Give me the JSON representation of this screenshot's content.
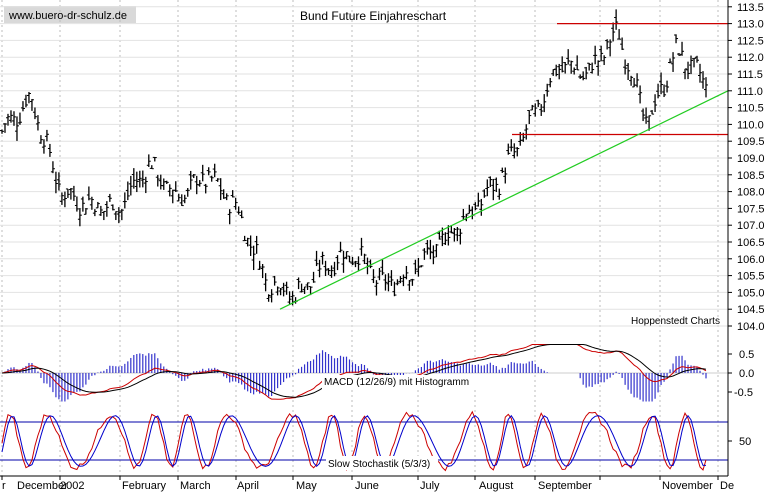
{
  "chart_data": {
    "type": "candlestick",
    "watermark": "www.buero-dr-schulz.de",
    "title": "Bund Future Einjahreschart",
    "source": "Hoppenstedt Charts",
    "x_labels": [
      "r",
      "December",
      "2002",
      "February",
      "March",
      "April",
      "May",
      "June",
      "July",
      "August",
      "September",
      "November",
      "De"
    ],
    "price_panel": {
      "ylim": [
        104.0,
        113.7
      ],
      "yticks": [
        "113.5",
        "113.0",
        "112.5",
        "112.0",
        "111.5",
        "111.0",
        "110.5",
        "110.0",
        "109.5",
        "109.0",
        "108.5",
        "108.0",
        "107.5",
        "107.0",
        "106.5",
        "106.0",
        "105.5",
        "105.0",
        "104.5",
        "104.0"
      ],
      "ytick_values": [
        113.5,
        113.0,
        112.5,
        112.0,
        111.5,
        111.0,
        110.5,
        110.0,
        109.5,
        109.0,
        108.5,
        108.0,
        107.5,
        107.0,
        106.5,
        106.0,
        105.5,
        105.0,
        104.5,
        104.0
      ],
      "support_level": 109.7,
      "resistance_level": 113.0,
      "trendline": {
        "start": 104.5,
        "end": 111.0
      },
      "key_points": [
        {
          "label": "r",
          "close": 109.8
        },
        {
          "label": "r",
          "close": 110.8
        },
        {
          "label": "December",
          "close": 108.0
        },
        {
          "label": "December",
          "close": 107.6
        },
        {
          "label": "2002",
          "close": 107.5
        },
        {
          "label": "2002",
          "close": 108.8
        },
        {
          "label": "February",
          "close": 107.8
        },
        {
          "label": "February",
          "close": 108.5
        },
        {
          "label": "March",
          "close": 107.5
        },
        {
          "label": "March",
          "close": 105.4
        },
        {
          "label": "April",
          "close": 104.9
        },
        {
          "label": "April",
          "close": 105.8
        },
        {
          "label": "May",
          "close": 106.2
        },
        {
          "label": "May",
          "close": 105.2
        },
        {
          "label": "June",
          "close": 105.6
        },
        {
          "label": "June",
          "close": 106.5
        },
        {
          "label": "July",
          "close": 107.4
        },
        {
          "label": "July",
          "close": 108.4
        },
        {
          "label": "August",
          "close": 110.0
        },
        {
          "label": "August",
          "close": 111.8
        },
        {
          "label": "September",
          "close": 111.5
        },
        {
          "label": "September",
          "close": 112.8
        },
        {
          "label": "November",
          "close": 110.0
        },
        {
          "label": "November",
          "close": 112.2
        },
        {
          "label": "De",
          "close": 111.2
        }
      ]
    },
    "macd_panel": {
      "label": "MACD (12/26/9) mit Histogramm",
      "yticks": [
        "0.5",
        "0.0",
        "-0.5"
      ],
      "ytick_values": [
        0.5,
        0.0,
        -0.5
      ],
      "ylim": [
        -0.8,
        0.9
      ]
    },
    "stochastic_panel": {
      "label": "Slow Stochastik (5/3/3)",
      "yticks": [
        "50"
      ],
      "ytick_values": [
        50
      ],
      "ylim": [
        0,
        100
      ],
      "upper_band": 80,
      "lower_band": 20
    },
    "colors": {
      "bars": "#000000",
      "support_resistance": "#cc0000",
      "trendline": "#22cc22",
      "indicator_red": "#cc0000",
      "indicator_blue": "#0000cc",
      "histogram": "#3333cc",
      "grid": "#bdbdbd"
    }
  }
}
